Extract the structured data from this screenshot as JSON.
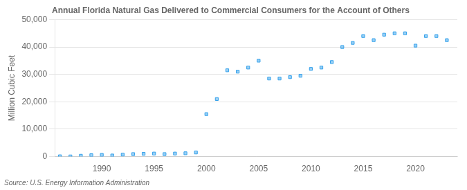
{
  "chart_data": {
    "type": "scatter",
    "title": "Annual Florida Natural Gas Delivered to Commercial Consumers for the Account of Others",
    "ylabel": "Million Cubic Feet",
    "annotation": "Source: U.S. Energy Information Administration",
    "x": [
      1986,
      1987,
      1988,
      1989,
      1990,
      1991,
      1992,
      1993,
      1994,
      1995,
      1996,
      1997,
      1998,
      1999,
      2000,
      2001,
      2002,
      2003,
      2004,
      2005,
      2006,
      2007,
      2008,
      2009,
      2010,
      2011,
      2012,
      2013,
      2014,
      2015,
      2016,
      2017,
      2018,
      2019,
      2020,
      2021,
      2022,
      2023
    ],
    "values": [
      100,
      50,
      300,
      500,
      600,
      400,
      700,
      900,
      1000,
      1100,
      900,
      1100,
      1200,
      1500,
      15500,
      21000,
      31500,
      31000,
      32500,
      35000,
      28500,
      28500,
      29000,
      29500,
      32000,
      32500,
      34500,
      40000,
      41500,
      44000,
      42500,
      44500,
      45000,
      45000,
      40500,
      44000,
      44000,
      42500
    ],
    "marker": "square",
    "xlim": [
      1985.5,
      2024
    ],
    "xticks": [
      1990,
      1995,
      2000,
      2005,
      2010,
      2015,
      2020
    ],
    "ylim": [
      0,
      50000
    ],
    "yticks": [
      0,
      {
        "value": 10000,
        "label": "10,000"
      },
      {
        "value": 20000,
        "label": "20,000"
      },
      {
        "value": 30000,
        "label": "30,000"
      },
      {
        "value": 40000,
        "label": "40,000"
      },
      {
        "value": 50000,
        "label": "50,000"
      }
    ],
    "grid": "y"
  }
}
